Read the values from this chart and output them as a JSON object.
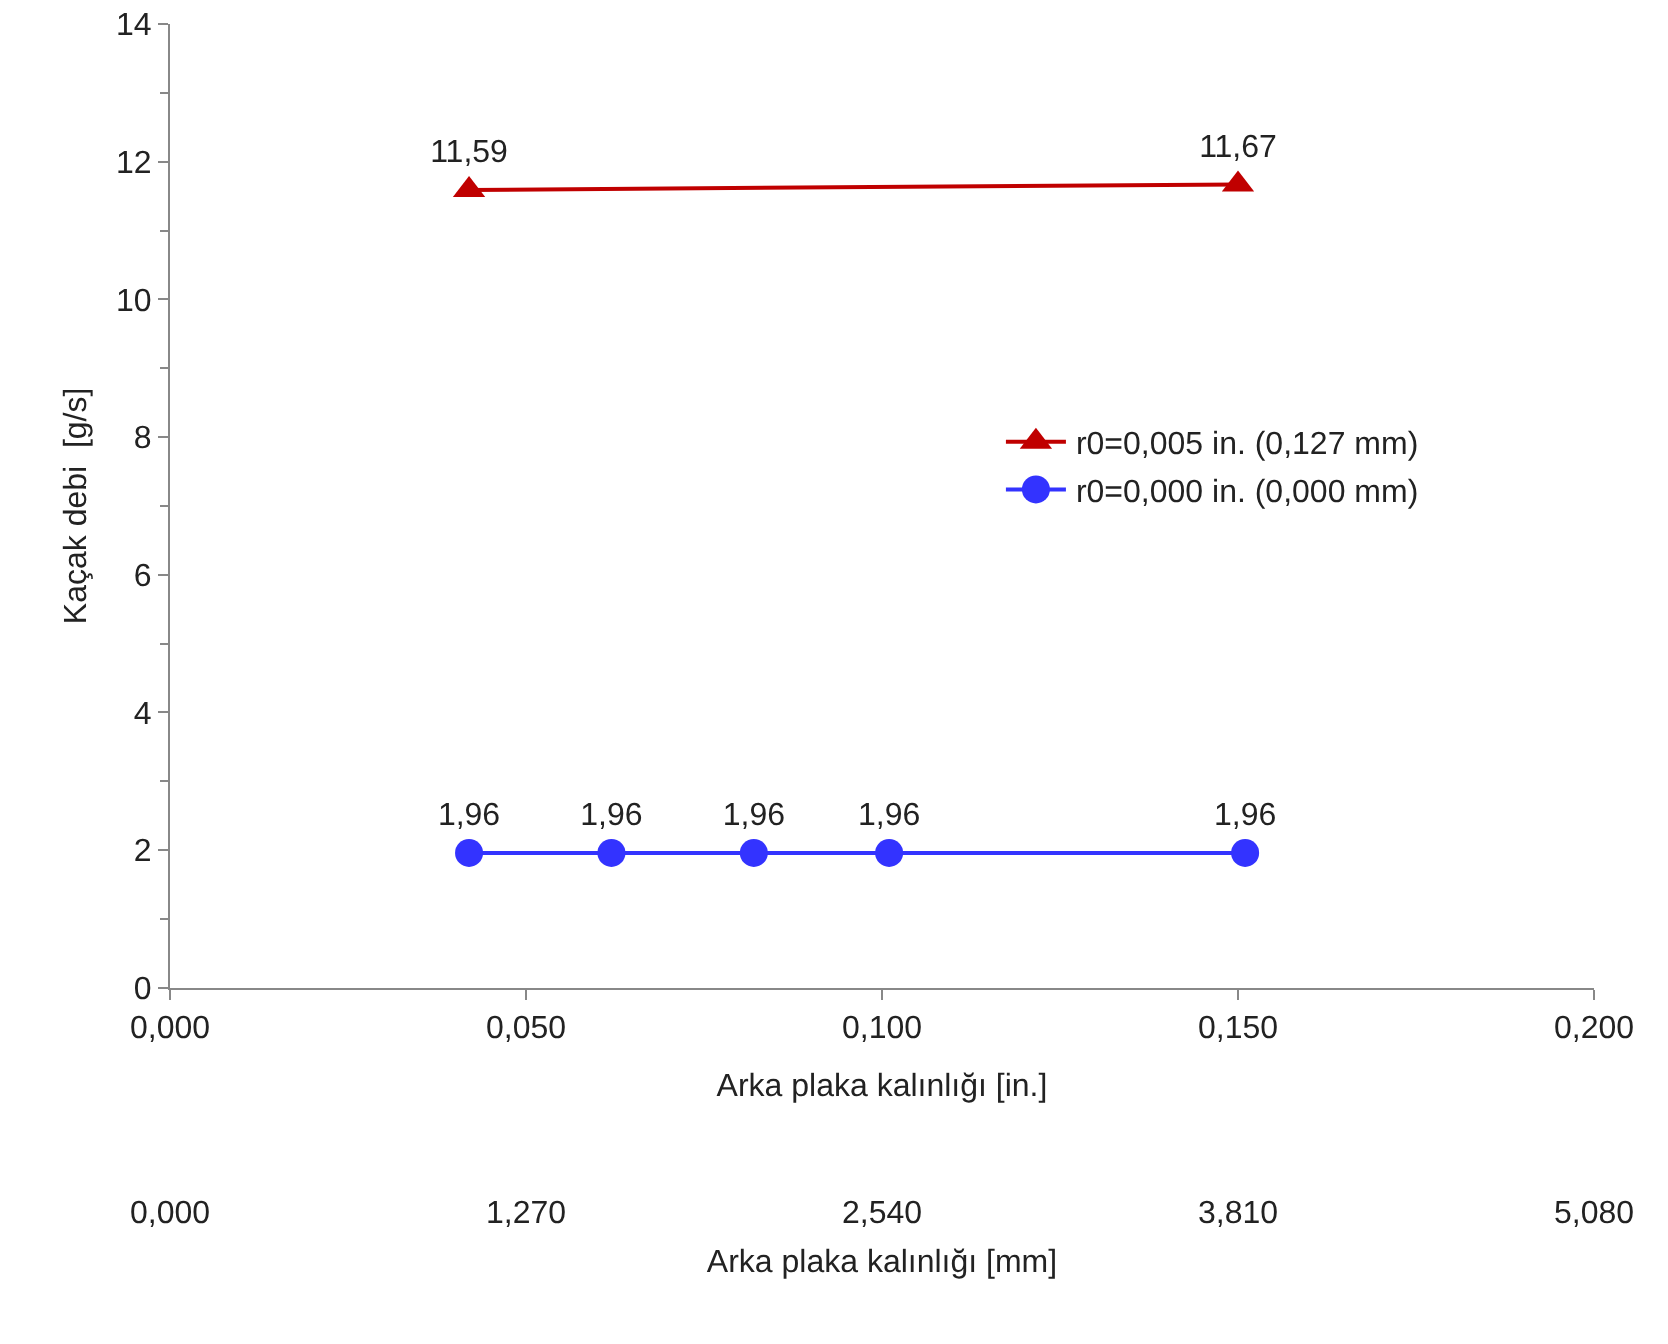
{
  "chart_data": {
    "type": "line",
    "xlabel": "Arka plaka kalınlığı [in.]",
    "ylabel": "Kaçak debi  [g/s]",
    "x2label": "Arka plaka kalınlığı [mm]",
    "xlim": [
      0,
      0.2
    ],
    "xticks": [
      {
        "value": 0,
        "label": "0,000"
      },
      {
        "value": 0.05,
        "label": "0,050"
      },
      {
        "value": 0.1,
        "label": "0,100"
      },
      {
        "value": 0.15,
        "label": "0,150"
      },
      {
        "value": 0.2,
        "label": "0,200"
      }
    ],
    "x2lim": [
      0,
      5.08
    ],
    "x2ticks": [
      {
        "value": 0,
        "label": "0,000"
      },
      {
        "value": 1.27,
        "label": "1,270"
      },
      {
        "value": 2.54,
        "label": "2,540"
      },
      {
        "value": 3.81,
        "label": "3,810"
      },
      {
        "value": 5.08,
        "label": "5,080"
      }
    ],
    "ylim": [
      0,
      14
    ],
    "yticks": [
      0,
      2,
      4,
      6,
      8,
      10,
      12,
      14
    ],
    "grid": false,
    "legend": "right",
    "series": [
      {
        "name": "r0=0,005 in. (0,127 mm)",
        "color": "#c00000",
        "marker": "triangle",
        "x": [
          0.042,
          0.15
        ],
        "values": [
          11.59,
          11.67
        ],
        "value_labels": [
          "11,59",
          "11,67"
        ]
      },
      {
        "name": "r0=0,000 in. (0,000 mm)",
        "color": "#3333ff",
        "marker": "circle",
        "x": [
          0.042,
          0.062,
          0.082,
          0.101,
          0.151
        ],
        "values": [
          1.96,
          1.96,
          1.96,
          1.96,
          1.96
        ],
        "value_labels": [
          "1,96",
          "1,96",
          "1,96",
          "1,96",
          "1,96"
        ]
      }
    ]
  }
}
